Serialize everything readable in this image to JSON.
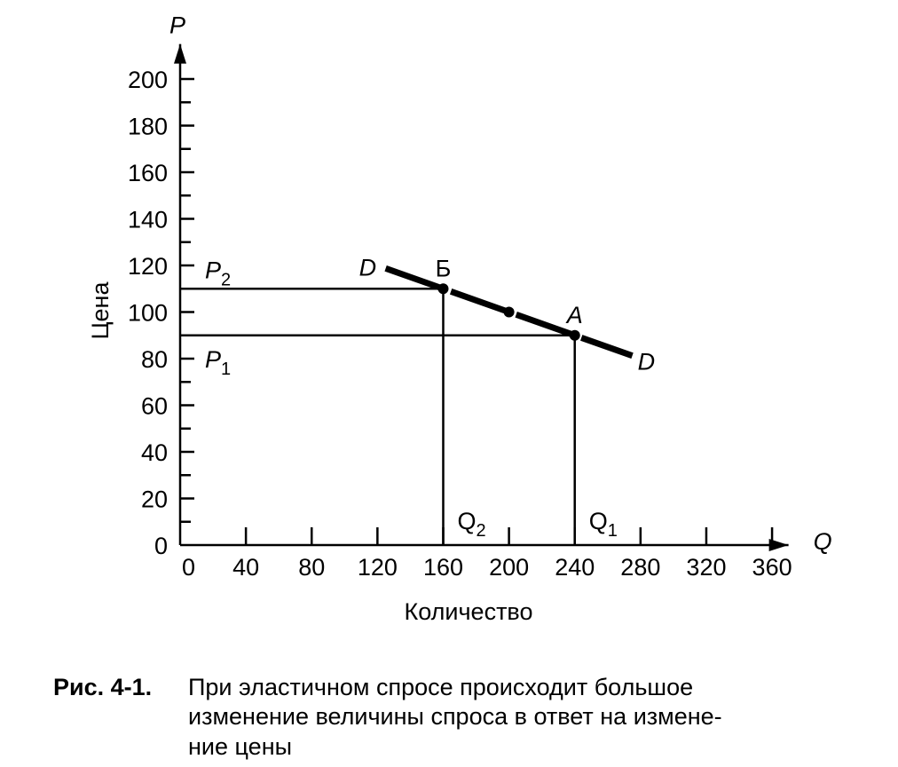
{
  "chart_data": {
    "type": "line",
    "x_label": "Количество",
    "y_label": "Цена",
    "x_axis_letter": "Q",
    "y_axis_letter": "P",
    "xlim": [
      0,
      370
    ],
    "ylim": [
      0,
      215
    ],
    "xticks": [
      0,
      40,
      80,
      120,
      160,
      200,
      240,
      280,
      320,
      360
    ],
    "yticks": [
      0,
      20,
      40,
      60,
      80,
      100,
      120,
      140,
      160,
      180,
      200
    ],
    "y_minor_ticks": [
      10,
      30,
      50,
      70,
      90,
      110,
      130,
      150,
      170,
      190
    ],
    "series": [
      {
        "label_start": "D",
        "label_end": "D",
        "color": "#000000",
        "x": [
          125,
          160,
          200,
          240,
          275
        ],
        "values": [
          118.75,
          110,
          100,
          90,
          81.25
        ]
      }
    ],
    "points": [
      {
        "label": "Б",
        "x": 160,
        "y": 110
      },
      {
        "x": 200,
        "y": 100
      },
      {
        "label": "A",
        "x": 240,
        "y": 90
      }
    ],
    "reference_lines": [
      {
        "price_label": "P",
        "price_sub": "2",
        "quantity_label": "Q",
        "quantity_sub": "2",
        "x": 160,
        "y": 110
      },
      {
        "price_label": "P",
        "price_sub": "1",
        "quantity_label": "Q",
        "quantity_sub": "1",
        "x": 240,
        "y": 90
      }
    ]
  },
  "caption": {
    "figure": "Рис. 4-1.",
    "lines": [
      "При эластичном спросе происходит большое",
      "изменение величины спроса в ответ на измене-",
      "ние цены"
    ]
  }
}
